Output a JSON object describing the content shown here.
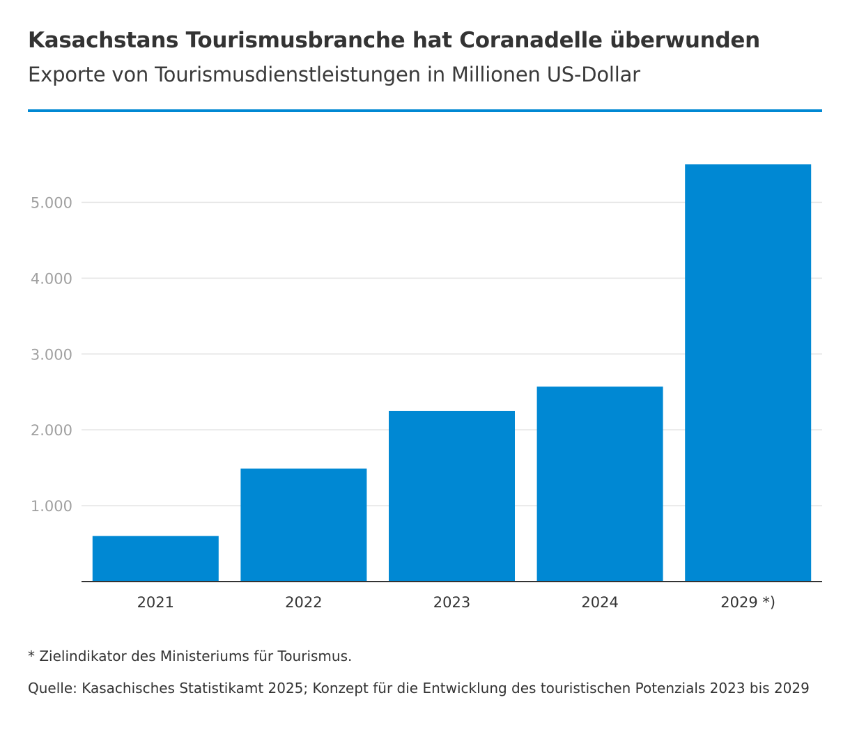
{
  "header": {
    "title": "Kasachstans Tourismusbranche hat Coranadelle überwunden",
    "subtitle": "Exporte von Tourismusdienstleistungen in Millionen US-Dollar"
  },
  "colors": {
    "accent": "#0088d3",
    "bar": "#0088d3",
    "grid": "#e2e2e2",
    "axis": "#333333"
  },
  "chart_data": {
    "type": "bar",
    "categories": [
      "2021",
      "2022",
      "2023",
      "2024",
      "2029 *)"
    ],
    "values": [
      600,
      1490,
      2250,
      2570,
      5500
    ],
    "title": "Kasachstans Tourismusbranche hat Coranadelle überwunden",
    "subtitle": "Exporte von Tourismusdienstleistungen in Millionen US-Dollar",
    "xlabel": "",
    "ylabel": "",
    "ylim": [
      0,
      5500
    ],
    "yticks": [
      1000,
      2000,
      3000,
      4000,
      5000
    ],
    "ytick_labels": [
      "1.000",
      "2.000",
      "3.000",
      "4.000",
      "5.000"
    ],
    "grid": true,
    "legend": "none"
  },
  "footer": {
    "footnote": "* Zielindikator des Ministeriums für Tourismus.",
    "source": "Quelle: Kasachisches Statistikamt 2025; Konzept für die Entwicklung des touristischen Potenzials 2023 bis 2029"
  }
}
